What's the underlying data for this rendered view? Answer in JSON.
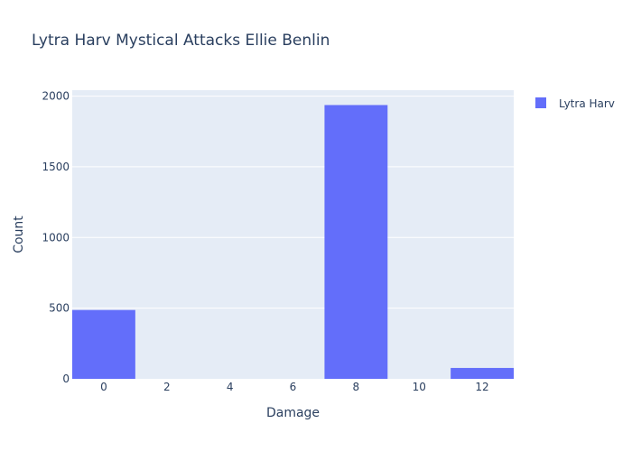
{
  "chart_data": {
    "type": "bar",
    "title": "Lytra Harv Mystical Attacks Ellie Benlin",
    "xlabel": "Damage",
    "ylabel": "Count",
    "x": [
      0,
      8,
      12
    ],
    "x_ticks": [
      0,
      2,
      4,
      6,
      8,
      10,
      12
    ],
    "xlim": [
      -1,
      13
    ],
    "ylim": [
      0,
      2042
    ],
    "y_ticks": [
      0,
      500,
      1000,
      1500,
      2000
    ],
    "grid": true,
    "legend_position": "top-right",
    "series": [
      {
        "name": "Lytra Harv",
        "color": "#636efa",
        "values": [
          487,
          1937,
          77
        ]
      }
    ]
  },
  "colors": {
    "plot_background": "#e5ecf6",
    "grid": "#ffffff",
    "text": "#2a3f5f"
  }
}
